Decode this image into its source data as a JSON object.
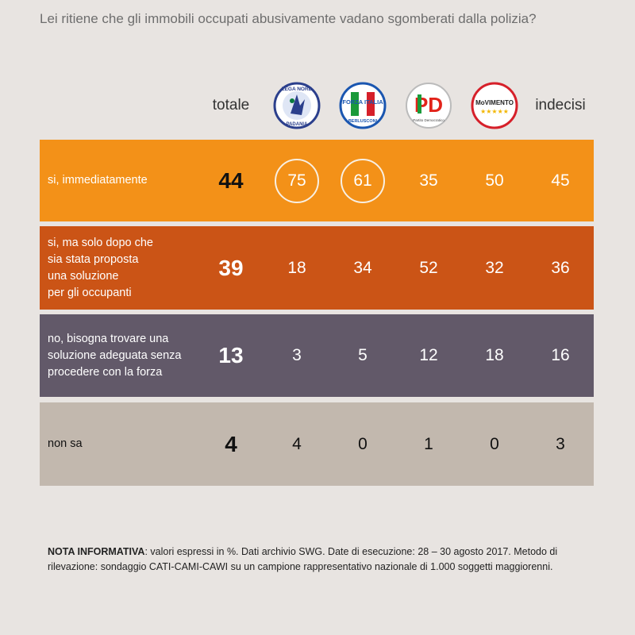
{
  "question": "Lei ritiene che gli immobili occupati abusivamente vadano sgomberati dalla polizia?",
  "header": {
    "totale": "totale",
    "indecisi": "indecisi",
    "logos": [
      {
        "name": "lega-nord-logo",
        "text_top": "LEGA NORD",
        "text_bottom": "PADANIA"
      },
      {
        "name": "forza-italia-logo",
        "text_top": "FORZA ITALIA",
        "text_bottom": "BERLUSCONI"
      },
      {
        "name": "pd-logo",
        "text_top": "PD",
        "text_bottom": "Partito Democratico"
      },
      {
        "name": "movimento-5-stelle-logo",
        "text_top": "MoVIMENTO",
        "text_bottom": "★★★★★"
      }
    ]
  },
  "colors": {
    "row1": "#f39118",
    "row2": "#cb5416",
    "row3": "#625969",
    "row4": "#c2b8ae",
    "background": "#e8e4e1"
  },
  "chart_data": {
    "type": "table",
    "columns": [
      "totale",
      "LEGA NORD",
      "FORZA ITALIA",
      "PD",
      "MoVIMENTO",
      "indecisi"
    ],
    "rows": [
      {
        "label": "si, immediatamente",
        "values": [
          "44",
          "75",
          "61",
          "35",
          "50",
          "45"
        ],
        "highlighted": [
          1,
          2
        ]
      },
      {
        "label": "si, ma solo dopo che\nsia stata proposta\nuna soluzione\nper gli occupanti",
        "values": [
          "39",
          "18",
          "34",
          "52",
          "32",
          "36"
        ],
        "highlighted": []
      },
      {
        "label": "no, bisogna trovare una\nsoluzione adeguata senza\nprocedere con la forza",
        "values": [
          "13",
          "3",
          "5",
          "12",
          "18",
          "16"
        ],
        "highlighted": []
      },
      {
        "label": "non sa",
        "values": [
          "4",
          "4",
          "0",
          "1",
          "0",
          "3"
        ],
        "highlighted": []
      }
    ]
  },
  "note": {
    "bold": "NOTA INFORMATIVA",
    "text": ": valori espressi in %. Dati archivio SWG. Date di esecuzione: 28 – 30 agosto 2017. Metodo di rilevazione: sondaggio CATI-CAMI-CAWI su un campione rappresentativo nazionale di 1.000 soggetti maggiorenni."
  }
}
